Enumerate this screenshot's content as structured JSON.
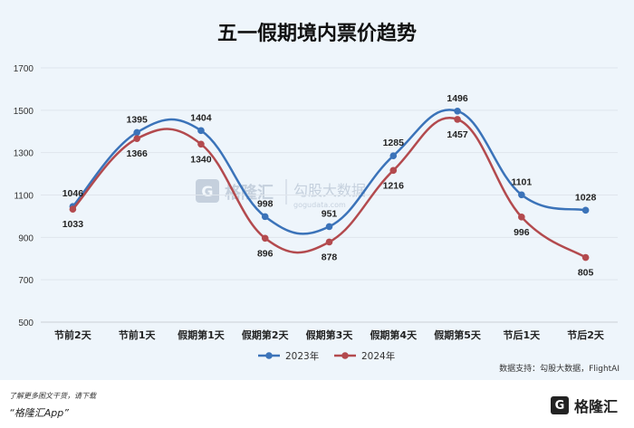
{
  "chart_data": {
    "type": "line",
    "title": "五一假期境内票价趋势",
    "categories": [
      "节前2天",
      "节前1天",
      "假期第1天",
      "假期第2天",
      "假期第3天",
      "假期第4天",
      "假期第5天",
      "节后1天",
      "节后2天"
    ],
    "series": [
      {
        "name": "2023年",
        "color": "#3b73b9",
        "values": [
          1046,
          1395,
          1404,
          998,
          951,
          1285,
          1496,
          1101,
          1028
        ]
      },
      {
        "name": "2024年",
        "color": "#b34a4e",
        "values": [
          1033,
          1366,
          1340,
          896,
          878,
          1216,
          1457,
          996,
          805
        ]
      }
    ],
    "ylim": [
      500,
      1700
    ],
    "yticks": [
      500,
      700,
      900,
      1100,
      1300,
      1500,
      1700
    ],
    "grid": true,
    "legend": "bottom-center",
    "source": "数据支持：勾股大数据，FlightAI",
    "watermark": {
      "brand": "格隆汇",
      "sub": "勾股大数据",
      "site": "gogudata.com"
    }
  },
  "footer": {
    "line1": "了解更多图文干货，请下载",
    "line2": "“格隆汇App”",
    "logo_icon": "G",
    "logo_text": "格隆汇"
  }
}
